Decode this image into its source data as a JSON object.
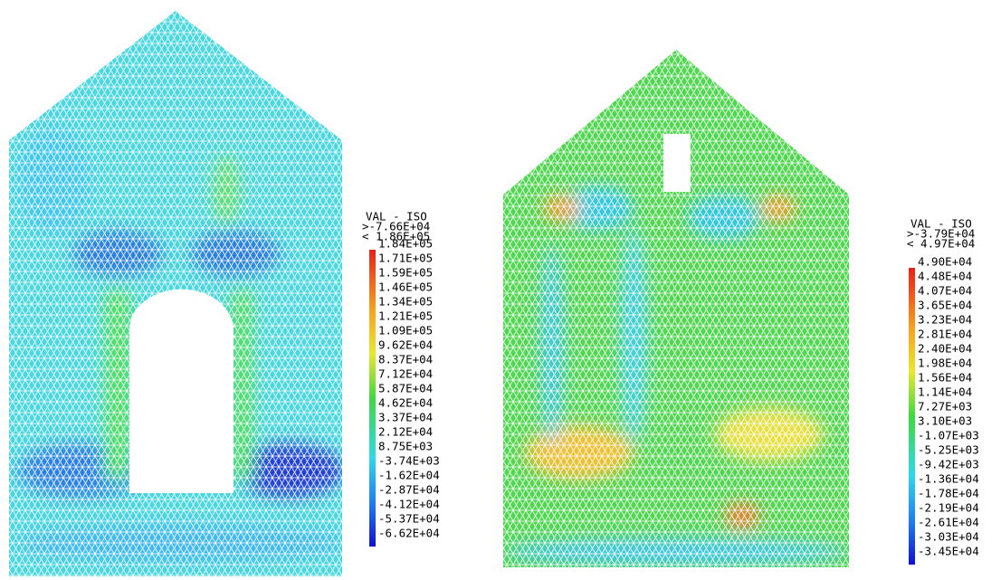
{
  "panels": [
    {
      "legend": {
        "title": "VAL - ISO",
        "max": ">-7.66E+04",
        "min": "< 1.86E+05",
        "labels": [
          "1.84E+05",
          "1.71E+05",
          "1.59E+05",
          "1.46E+05",
          "1.34E+05",
          "1.21E+05",
          "1.09E+05",
          "9.62E+04",
          "8.37E+04",
          "7.12E+04",
          "5.87E+04",
          "4.62E+04",
          "3.37E+04",
          "2.12E+04",
          "8.75E+03",
          "-3.74E+03",
          "-1.62E+04",
          "-2.87E+04",
          "-4.12E+04",
          "-5.37E+04",
          "-6.62E+04"
        ]
      }
    },
    {
      "legend": {
        "title": "VAL - ISO",
        "max": ">-3.79E+04",
        "min": "< 4.97E+04",
        "labels": [
          "4.90E+04",
          "4.48E+04",
          "4.07E+04",
          "3.65E+04",
          "3.23E+04",
          "2.81E+04",
          "2.40E+04",
          "1.98E+04",
          "1.56E+04",
          "1.14E+04",
          "7.27E+03",
          "3.10E+03",
          "-1.07E+03",
          "-5.25E+03",
          "-9.42E+03",
          "-1.36E+04",
          "-1.78E+04",
          "-2.19E+04",
          "-2.61E+04",
          "-3.03E+04",
          "-3.45E+04"
        ]
      }
    }
  ]
}
